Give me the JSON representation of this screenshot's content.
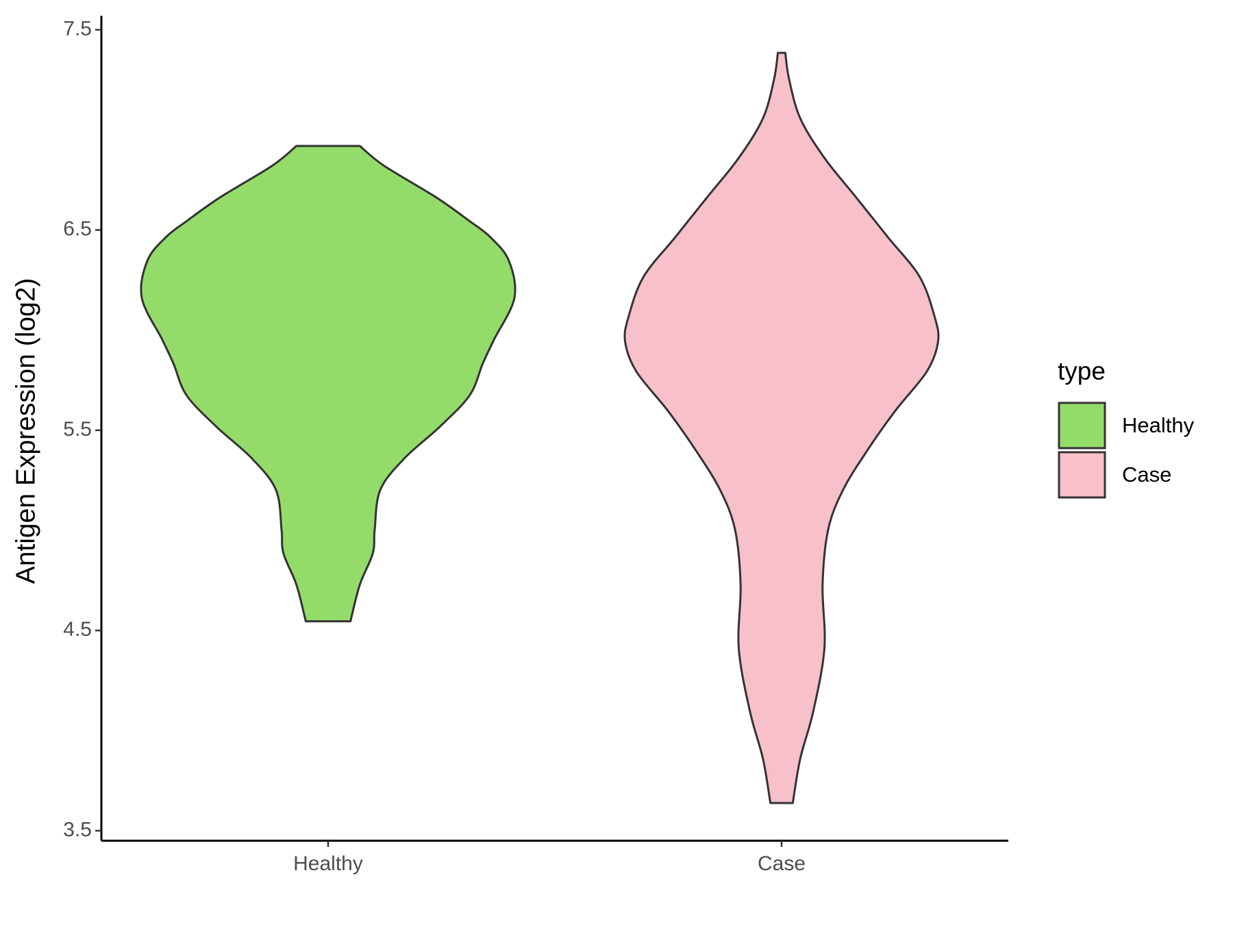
{
  "chart_data": {
    "type": "violin",
    "y_label": "Antigen Expression (log2)",
    "legend_title": "type",
    "legend_position": "right",
    "categories": [
      "Healthy",
      "Case"
    ],
    "ylim": [
      3.45,
      7.57
    ],
    "yticks": [
      3.5,
      4.5,
      5.5,
      6.5,
      7.5
    ],
    "series": [
      {
        "name": "Healthy",
        "color": "#94dc6a",
        "y": [
          6.92,
          6.821,
          6.663,
          6.544,
          6.465,
          6.347,
          6.161,
          5.952,
          5.833,
          5.675,
          5.518,
          5.36,
          5.202,
          5.004,
          4.886,
          4.728,
          4.546
        ],
        "density": [
          0.17,
          0.3,
          0.58,
          0.76,
          0.87,
          0.97,
          1,
          0.89,
          0.83,
          0.76,
          0.6,
          0.41,
          0.28,
          0.25,
          0.24,
          0.17,
          0.12
        ]
      },
      {
        "name": "Case",
        "color": "#f7c0cb",
        "y": [
          7.385,
          7.255,
          7.058,
          6.86,
          6.663,
          6.465,
          6.268,
          6.071,
          5.944,
          5.794,
          5.597,
          5.399,
          5.202,
          5.004,
          4.728,
          4.412,
          4.096,
          3.859,
          3.638
        ],
        "density": [
          0.02,
          0.04,
          0.1,
          0.23,
          0.4,
          0.57,
          0.74,
          0.82,
          0.84,
          0.78,
          0.61,
          0.46,
          0.33,
          0.25,
          0.22,
          0.23,
          0.17,
          0.1,
          0.06
        ]
      }
    ]
  }
}
